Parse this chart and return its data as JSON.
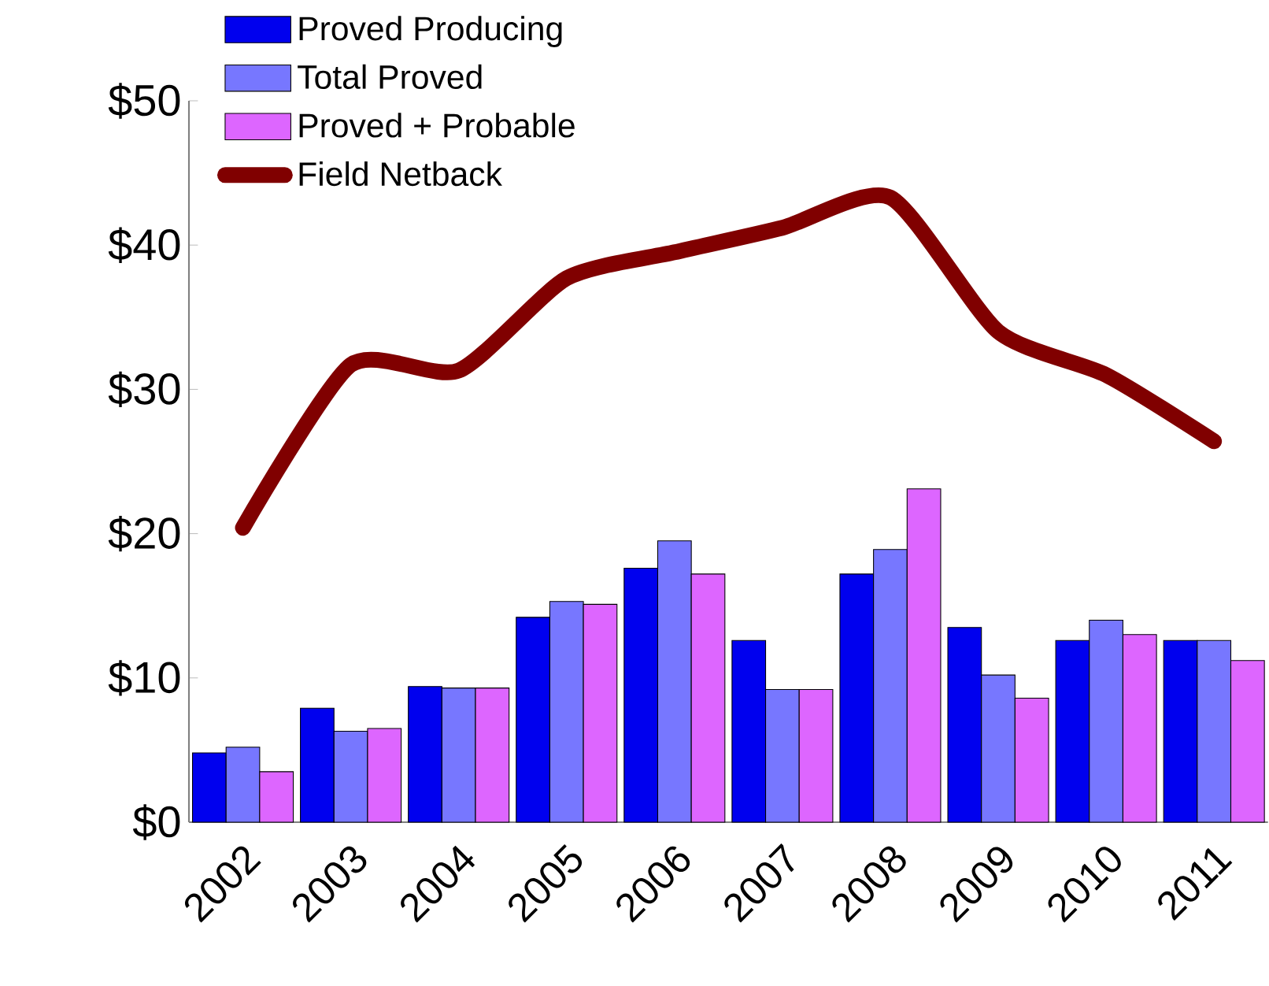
{
  "chart_data": {
    "type": "bar",
    "categories": [
      "2002",
      "2003",
      "2004",
      "2005",
      "2006",
      "2007",
      "2008",
      "2009",
      "2010",
      "2011"
    ],
    "series": [
      {
        "name": "Proved Producing",
        "color": "#0000ee",
        "values": [
          4.8,
          7.9,
          9.4,
          14.2,
          17.6,
          12.6,
          17.2,
          13.5,
          12.6,
          12.6
        ]
      },
      {
        "name": "Total Proved",
        "color": "#7777ff",
        "values": [
          5.2,
          6.3,
          9.3,
          15.3,
          19.5,
          9.2,
          18.9,
          10.2,
          14.0,
          12.6
        ]
      },
      {
        "name": "Proved + Probable",
        "color": "#dd66ff",
        "values": [
          3.5,
          6.5,
          9.3,
          15.1,
          17.2,
          9.2,
          23.1,
          8.6,
          13.0,
          11.2
        ]
      },
      {
        "name": "Field Netback",
        "color": "#800000",
        "type": "line",
        "values": [
          20.4,
          31.7,
          31.3,
          37.7,
          39.5,
          41.2,
          43.3,
          34.0,
          31.0,
          26.4
        ]
      }
    ],
    "ylim": [
      0,
      50
    ],
    "yticks": [
      {
        "value": 0,
        "label": "$0"
      },
      {
        "value": 10,
        "label": "$10"
      },
      {
        "value": 20,
        "label": "$20"
      },
      {
        "value": 30,
        "label": "$30"
      },
      {
        "value": 40,
        "label": "$40"
      },
      {
        "value": 50,
        "label": "$50"
      }
    ],
    "legend": "top left"
  }
}
